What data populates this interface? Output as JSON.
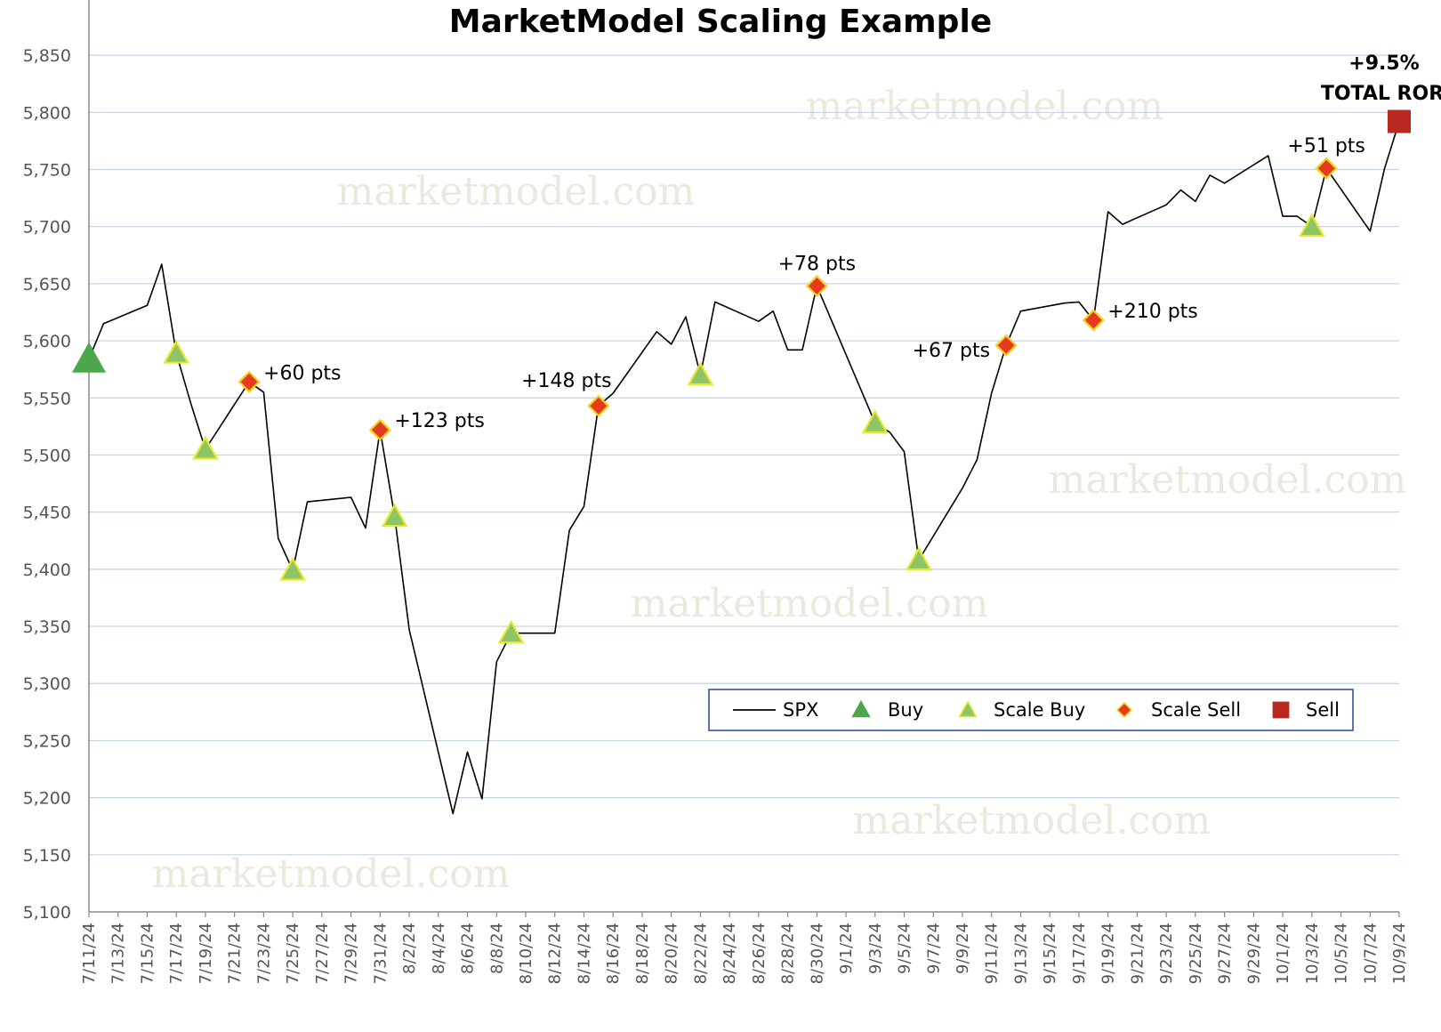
{
  "chart_data": {
    "type": "line",
    "title": "MarketModel Scaling Example",
    "xlabel": "",
    "ylabel": "",
    "ylim": [
      5100,
      5875
    ],
    "yticks": [
      5100,
      5150,
      5200,
      5250,
      5300,
      5350,
      5400,
      5450,
      5500,
      5550,
      5600,
      5650,
      5700,
      5750,
      5800,
      5850
    ],
    "ytick_labels": [
      "5,100",
      "5,150",
      "5,200",
      "5,250",
      "5,300",
      "5,350",
      "5,400",
      "5,450",
      "5,500",
      "5,550",
      "5,600",
      "5,650",
      "5,700",
      "5,750",
      "5,800",
      "5,850"
    ],
    "xtick_labels": [
      "7/11/24",
      "7/13/24",
      "7/15/24",
      "7/17/24",
      "7/19/24",
      "7/21/24",
      "7/23/24",
      "7/25/24",
      "7/27/24",
      "7/29/24",
      "7/31/24",
      "8/2/24",
      "8/4/24",
      "8/6/24",
      "8/8/24",
      "8/10/24",
      "8/12/24",
      "8/14/24",
      "8/16/24",
      "8/18/24",
      "8/20/24",
      "8/22/24",
      "8/24/24",
      "8/26/24",
      "8/28/24",
      "8/30/24",
      "9/1/24",
      "9/3/24",
      "9/5/24",
      "9/7/24",
      "9/9/24",
      "9/11/24",
      "9/13/24",
      "9/15/24",
      "9/17/24",
      "9/19/24",
      "9/21/24",
      "9/23/24",
      "9/25/24",
      "9/27/24",
      "9/29/24",
      "10/1/24",
      "10/3/24",
      "10/5/24",
      "10/7/24",
      "10/9/24"
    ],
    "x_start": "7/11/24",
    "x_end": "10/9/24",
    "grid": true,
    "legend_position": "bottom-right",
    "series": [
      {
        "name": "SPX",
        "kind": "line",
        "color": "#000000",
        "points": [
          [
            "7/11/24",
            5584
          ],
          [
            "7/12/24",
            5615
          ],
          [
            "7/15/24",
            5631
          ],
          [
            "7/16/24",
            5667
          ],
          [
            "7/17/24",
            5589
          ],
          [
            "7/18/24",
            5545
          ],
          [
            "7/19/24",
            5505
          ],
          [
            "7/22/24",
            5564
          ],
          [
            "7/23/24",
            5555
          ],
          [
            "7/24/24",
            5427
          ],
          [
            "7/25/24",
            5399
          ],
          [
            "7/26/24",
            5459
          ],
          [
            "7/29/24",
            5463
          ],
          [
            "7/30/24",
            5436
          ],
          [
            "7/31/24",
            5522
          ],
          [
            "8/1/24",
            5446
          ],
          [
            "8/2/24",
            5347
          ],
          [
            "8/5/24",
            5186
          ],
          [
            "8/6/24",
            5240
          ],
          [
            "8/7/24",
            5199
          ],
          [
            "8/8/24",
            5319
          ],
          [
            "8/9/24",
            5344
          ],
          [
            "8/12/24",
            5344
          ],
          [
            "8/13/24",
            5434
          ],
          [
            "8/14/24",
            5455
          ],
          [
            "8/15/24",
            5543
          ],
          [
            "8/16/24",
            5554
          ],
          [
            "8/19/24",
            5608
          ],
          [
            "8/20/24",
            5597
          ],
          [
            "8/21/24",
            5621
          ],
          [
            "8/22/24",
            5570
          ],
          [
            "8/23/24",
            5634
          ],
          [
            "8/26/24",
            5617
          ],
          [
            "8/27/24",
            5626
          ],
          [
            "8/28/24",
            5592
          ],
          [
            "8/29/24",
            5592
          ],
          [
            "8/30/24",
            5648
          ],
          [
            "9/3/24",
            5528
          ],
          [
            "9/4/24",
            5520
          ],
          [
            "9/5/24",
            5503
          ],
          [
            "9/6/24",
            5408
          ],
          [
            "9/9/24",
            5471
          ],
          [
            "9/10/24",
            5496
          ],
          [
            "9/11/24",
            5554
          ],
          [
            "9/12/24",
            5596
          ],
          [
            "9/13/24",
            5626
          ],
          [
            "9/16/24",
            5633
          ],
          [
            "9/17/24",
            5634
          ],
          [
            "9/18/24",
            5618
          ],
          [
            "9/19/24",
            5713
          ],
          [
            "9/20/24",
            5702
          ],
          [
            "9/23/24",
            5719
          ],
          [
            "9/24/24",
            5732
          ],
          [
            "9/25/24",
            5722
          ],
          [
            "9/26/24",
            5745
          ],
          [
            "9/27/24",
            5738
          ],
          [
            "9/30/24",
            5762
          ],
          [
            "10/1/24",
            5709
          ],
          [
            "10/2/24",
            5709
          ],
          [
            "10/3/24",
            5700
          ],
          [
            "10/4/24",
            5751
          ],
          [
            "10/7/24",
            5696
          ],
          [
            "10/8/24",
            5751
          ],
          [
            "10/9/24",
            5792
          ]
        ]
      },
      {
        "name": "Buy",
        "kind": "marker",
        "shape": "triangle-large",
        "color": "#4ca64c",
        "points": [
          [
            "7/11/24",
            5584
          ]
        ]
      },
      {
        "name": "Scale Buy",
        "kind": "marker",
        "shape": "triangle",
        "color": "#8cc466",
        "edge": "#e8e830",
        "points": [
          [
            "7/17/24",
            5589
          ],
          [
            "7/19/24",
            5505
          ],
          [
            "7/25/24",
            5399
          ],
          [
            "8/1/24",
            5446
          ],
          [
            "8/9/24",
            5344
          ],
          [
            "8/22/24",
            5570
          ],
          [
            "9/3/24",
            5528
          ],
          [
            "9/6/24",
            5408
          ],
          [
            "10/3/24",
            5700
          ]
        ]
      },
      {
        "name": "Scale Sell",
        "kind": "marker",
        "shape": "diamond",
        "color": "#e63a1f",
        "edge": "#f2d21a",
        "points": [
          [
            "7/22/24",
            5564
          ],
          [
            "7/31/24",
            5522
          ],
          [
            "8/15/24",
            5543
          ],
          [
            "8/30/24",
            5648
          ],
          [
            "9/12/24",
            5596
          ],
          [
            "9/18/24",
            5618
          ],
          [
            "10/4/24",
            5751
          ]
        ]
      },
      {
        "name": "Sell",
        "kind": "marker",
        "shape": "square",
        "color": "#b8281f",
        "points": [
          [
            "10/9/24",
            5792
          ]
        ]
      }
    ],
    "annotations": [
      {
        "text": "+60 pts",
        "x": "7/22/24",
        "y": 5564,
        "anchor": "right"
      },
      {
        "text": "+123 pts",
        "x": "7/31/24",
        "y": 5522,
        "anchor": "right"
      },
      {
        "text": "+148 pts",
        "x": "8/15/24",
        "y": 5543,
        "anchor": "above-left"
      },
      {
        "text": "+78 pts",
        "x": "8/30/24",
        "y": 5648,
        "anchor": "above"
      },
      {
        "text": "+67 pts",
        "x": "9/12/24",
        "y": 5596,
        "anchor": "left"
      },
      {
        "text": "+210 pts",
        "x": "9/18/24",
        "y": 5618,
        "anchor": "right"
      },
      {
        "text": "+51 pts",
        "x": "10/4/24",
        "y": 5751,
        "anchor": "above"
      }
    ],
    "total_ror": {
      "line1": "+9.5%",
      "line2": "TOTAL ROR",
      "x": "10/9/24",
      "y": 5792
    }
  },
  "watermark_text": "marketmodel.com",
  "colors": {
    "grid": "#c5d3e6",
    "axis": "#888888",
    "legend_border": "#2f5597",
    "watermark": "#ebe8dc"
  }
}
